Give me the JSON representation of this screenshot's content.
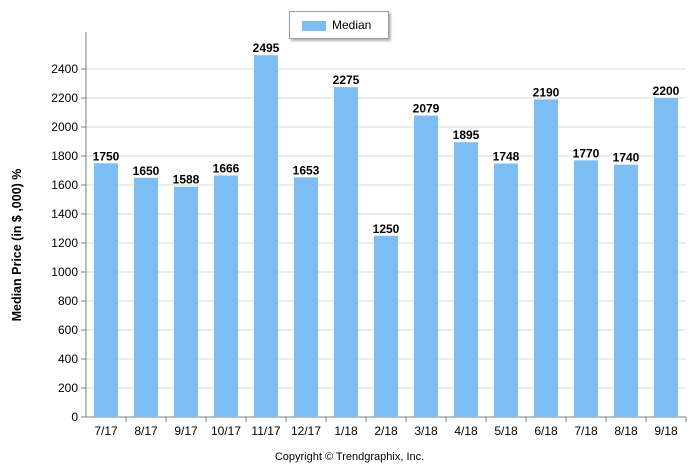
{
  "chart_data": {
    "type": "bar",
    "categories": [
      "7/17",
      "8/17",
      "9/17",
      "10/17",
      "11/17",
      "12/17",
      "1/18",
      "2/18",
      "3/18",
      "4/18",
      "5/18",
      "6/18",
      "7/18",
      "8/18",
      "9/18"
    ],
    "series": [
      {
        "name": "Median",
        "values": [
          1750,
          1650,
          1588,
          1666,
          2495,
          1653,
          2275,
          1250,
          2079,
          1895,
          1748,
          2190,
          1770,
          1740,
          2200
        ],
        "color": "#7dbdf2"
      }
    ],
    "data_labels": [
      "1750",
      "1650",
      "1588",
      "1666",
      "2495",
      "1653",
      "2275",
      "1250",
      "2079",
      "1895",
      "1748",
      "2190",
      "1770",
      "1740",
      "2200"
    ],
    "yticks": [
      "0",
      "200",
      "400",
      "600",
      "800",
      "1000",
      "1200",
      "1400",
      "1600",
      "1800",
      "2000",
      "2200",
      "2400"
    ],
    "ylim": [
      0,
      2600
    ],
    "ylabel": "Median Price (in $ ,000) %",
    "xlabel": "",
    "legend": {
      "position": "top-center",
      "entries": [
        "Median"
      ]
    },
    "grid": true
  },
  "footer": {
    "copyright": "Copyright © Trendgraphix, Inc."
  },
  "colors": {
    "bar": "#7dbdf2",
    "grid": "#d9d9d9",
    "axis": "#808080"
  }
}
